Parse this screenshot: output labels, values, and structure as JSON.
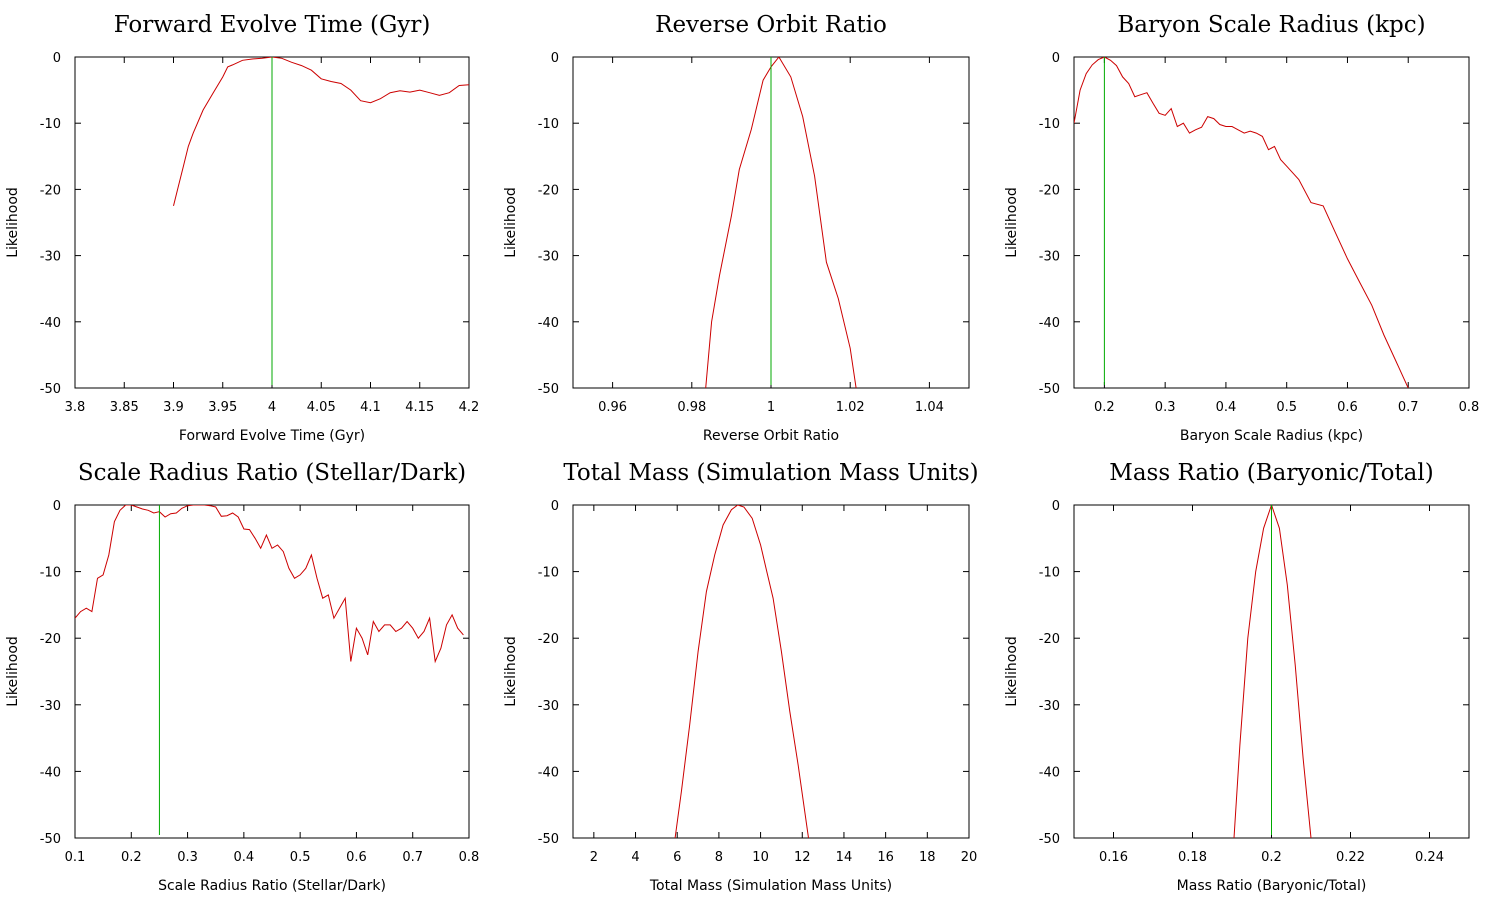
{
  "colors": {
    "likelihood": "#cc0000",
    "true_value": "#00aa00",
    "axes": "#000000"
  },
  "chart_data": [
    {
      "type": "line",
      "title": "Forward Evolve Time (Gyr)",
      "xlabel": "Forward Evolve Time (Gyr)",
      "ylabel": "Likelihood",
      "xlim": [
        3.8,
        4.2
      ],
      "ylim": [
        -50,
        0
      ],
      "xticks": [
        "3.8",
        "3.85",
        "3.9",
        "3.95",
        "4",
        "4.05",
        "4.1",
        "4.15",
        "4.2"
      ],
      "yticks": [
        "0",
        "-10",
        "-20",
        "-30",
        "-40",
        "-50"
      ],
      "true_value": 4.0,
      "x": [
        3.9,
        3.905,
        3.91,
        3.915,
        3.92,
        3.93,
        3.94,
        3.95,
        3.955,
        3.96,
        3.97,
        3.98,
        3.99,
        4.0,
        4.01,
        4.02,
        4.03,
        4.04,
        4.05,
        4.06,
        4.07,
        4.08,
        4.09,
        4.1,
        4.11,
        4.12,
        4.13,
        4.14,
        4.15,
        4.16,
        4.17,
        4.18,
        4.19,
        4.2
      ],
      "y": [
        -22.5,
        -19.5,
        -16.5,
        -13.5,
        -11.5,
        -8,
        -5.5,
        -3,
        -1.5,
        -1.2,
        -0.5,
        -0.3,
        -0.2,
        0,
        -0.2,
        -0.8,
        -1.3,
        -2,
        -3.3,
        -3.7,
        -4,
        -5,
        -6.6,
        -6.9,
        -6.3,
        -5.4,
        -5.1,
        -5.3,
        -5.0,
        -5.4,
        -5.8,
        -5.4,
        -4.3,
        -4.2
      ]
    },
    {
      "type": "line",
      "title": "Reverse Orbit Ratio",
      "xlabel": "Reverse Orbit Ratio",
      "ylabel": "Likelihood",
      "xlim": [
        0.95,
        1.05
      ],
      "ylim": [
        -50,
        0
      ],
      "xticks": [
        "0.96",
        "0.98",
        "1",
        "1.02",
        "1.04"
      ],
      "yticks": [
        "0",
        "-10",
        "-20",
        "-30",
        "-40",
        "-50"
      ],
      "true_value": 1.0,
      "x": [
        0.9835,
        0.985,
        0.987,
        0.99,
        0.992,
        0.995,
        0.998,
        1.0,
        1.002,
        1.005,
        1.008,
        1.011,
        1.014,
        1.017,
        1.02,
        1.0215
      ],
      "y": [
        -50,
        -40,
        -33,
        -24,
        -17,
        -11,
        -3.5,
        -1.5,
        0,
        -3,
        -9,
        -18,
        -31,
        -36.5,
        -44,
        -50
      ]
    },
    {
      "type": "line",
      "title": "Baryon Scale Radius (kpc)",
      "xlabel": "Baryon Scale Radius (kpc)",
      "ylabel": "Likelihood",
      "xlim": [
        0.15,
        0.8
      ],
      "ylim": [
        -50,
        0
      ],
      "xticks": [
        "0.2",
        "0.3",
        "0.4",
        "0.5",
        "0.6",
        "0.7",
        "0.8"
      ],
      "yticks": [
        "0",
        "-10",
        "-20",
        "-30",
        "-40",
        "-50"
      ],
      "true_value": 0.2,
      "x": [
        0.15,
        0.16,
        0.17,
        0.18,
        0.19,
        0.2,
        0.21,
        0.22,
        0.23,
        0.24,
        0.25,
        0.26,
        0.27,
        0.28,
        0.29,
        0.3,
        0.31,
        0.32,
        0.33,
        0.34,
        0.35,
        0.36,
        0.37,
        0.38,
        0.39,
        0.4,
        0.41,
        0.42,
        0.43,
        0.44,
        0.45,
        0.46,
        0.47,
        0.48,
        0.49,
        0.5,
        0.52,
        0.54,
        0.56,
        0.58,
        0.6,
        0.62,
        0.64,
        0.66,
        0.68,
        0.7
      ],
      "y": [
        -10,
        -5,
        -2.5,
        -1.2,
        -0.4,
        0,
        -0.5,
        -1.3,
        -3,
        -4,
        -6,
        -5.7,
        -5.4,
        -7,
        -8.5,
        -8.8,
        -7.8,
        -10.5,
        -10,
        -11.5,
        -11,
        -10.6,
        -9,
        -9.3,
        -10.2,
        -10.5,
        -10.5,
        -11,
        -11.5,
        -11.2,
        -11.5,
        -12,
        -14,
        -13.5,
        -15.5,
        -16.5,
        -18.5,
        -22,
        -22.5,
        -26.5,
        -30.5,
        -34,
        -37.5,
        -42,
        -46,
        -50
      ]
    },
    {
      "type": "line",
      "title": "Scale Radius Ratio (Stellar/Dark)",
      "xlabel": "Scale Radius Ratio (Stellar/Dark)",
      "ylabel": "Likelihood",
      "xlim": [
        0.1,
        0.8
      ],
      "ylim": [
        -50,
        0
      ],
      "xticks": [
        "0.1",
        "0.2",
        "0.3",
        "0.4",
        "0.5",
        "0.6",
        "0.7",
        "0.8"
      ],
      "yticks": [
        "0",
        "-10",
        "-20",
        "-30",
        "-40",
        "-50"
      ],
      "true_value": 0.25,
      "x": [
        0.1,
        0.11,
        0.12,
        0.13,
        0.14,
        0.15,
        0.16,
        0.17,
        0.18,
        0.19,
        0.2,
        0.21,
        0.22,
        0.23,
        0.24,
        0.25,
        0.26,
        0.27,
        0.28,
        0.29,
        0.3,
        0.31,
        0.32,
        0.33,
        0.34,
        0.35,
        0.36,
        0.37,
        0.38,
        0.39,
        0.4,
        0.41,
        0.42,
        0.43,
        0.44,
        0.45,
        0.46,
        0.47,
        0.48,
        0.49,
        0.5,
        0.51,
        0.52,
        0.53,
        0.54,
        0.55,
        0.56,
        0.57,
        0.58,
        0.59,
        0.6,
        0.61,
        0.62,
        0.63,
        0.64,
        0.65,
        0.66,
        0.67,
        0.68,
        0.69,
        0.7,
        0.71,
        0.72,
        0.73,
        0.74,
        0.75,
        0.76,
        0.77,
        0.78,
        0.79
      ],
      "y": [
        -17,
        -16,
        -15.5,
        -16,
        -11,
        -10.5,
        -7.5,
        -2.5,
        -0.8,
        0,
        0,
        -0.3,
        -0.6,
        -0.8,
        -1.2,
        -1,
        -1.8,
        -1.3,
        -1.2,
        -0.5,
        -0.1,
        0,
        0,
        0,
        -0.1,
        -0.3,
        -1.7,
        -1.6,
        -1.2,
        -1.8,
        -3.6,
        -3.7,
        -5,
        -6.5,
        -4.5,
        -6.5,
        -6,
        -7,
        -9.5,
        -11,
        -10.5,
        -9.5,
        -7.5,
        -11,
        -14,
        -13.5,
        -17,
        -15.5,
        -14,
        -23.5,
        -18.5,
        -20,
        -22.5,
        -17.5,
        -19,
        -18,
        -18,
        -19,
        -18.5,
        -17.5,
        -18.5,
        -20,
        -19,
        -17,
        -23.5,
        -21.5,
        -18,
        -16.5,
        -18.5,
        -19.5
      ]
    },
    {
      "type": "line",
      "title": "Total Mass (Simulation Mass Units)",
      "xlabel": "Total Mass (Simulation Mass Units)",
      "ylabel": "Likelihood",
      "xlim": [
        1,
        20
      ],
      "ylim": [
        -50,
        0
      ],
      "xticks": [
        "2",
        "4",
        "6",
        "8",
        "10",
        "12",
        "14",
        "16",
        "18",
        "20"
      ],
      "yticks": [
        "0",
        "-10",
        "-20",
        "-30",
        "-40",
        "-50"
      ],
      "x": [
        5.9,
        6.2,
        6.6,
        7.0,
        7.4,
        7.8,
        8.2,
        8.6,
        8.9,
        9.2,
        9.6,
        10.0,
        10.3,
        10.6,
        11.0,
        11.4,
        11.8,
        12.3
      ],
      "y": [
        -50,
        -43,
        -33,
        -22,
        -13,
        -7.5,
        -3,
        -0.7,
        0,
        -0.3,
        -2,
        -6,
        -10,
        -14,
        -22,
        -31,
        -39,
        -50
      ]
    },
    {
      "type": "line",
      "title": "Mass Ratio (Baryonic/Total)",
      "xlabel": "Mass Ratio (Baryonic/Total)",
      "ylabel": "Likelihood",
      "xlim": [
        0.15,
        0.25
      ],
      "ylim": [
        -50,
        0
      ],
      "xticks": [
        "0.16",
        "0.18",
        "0.2",
        "0.22",
        "0.24"
      ],
      "yticks": [
        "0",
        "-10",
        "-20",
        "-30",
        "-40",
        "-50"
      ],
      "true_value": 0.2,
      "x": [
        0.1905,
        0.192,
        0.194,
        0.196,
        0.198,
        0.2,
        0.202,
        0.204,
        0.206,
        0.208,
        0.21
      ],
      "y": [
        -50,
        -36,
        -20,
        -10,
        -3.5,
        0,
        -3.5,
        -12,
        -24,
        -38,
        -50
      ]
    }
  ]
}
